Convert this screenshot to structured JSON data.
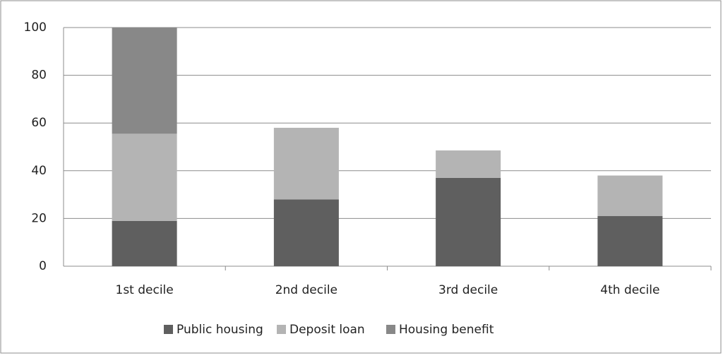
{
  "chart_data": {
    "type": "stacked_bar",
    "categories": [
      "1st decile",
      "2nd decile",
      "3rd decile",
      "4th decile"
    ],
    "series": [
      {
        "name": "Public housing",
        "color": "#5f5f5f",
        "values": [
          19,
          28,
          37,
          21
        ]
      },
      {
        "name": "Deposit loan",
        "color": "#b4b4b4",
        "values": [
          36.5,
          30,
          11.5,
          17
        ]
      },
      {
        "name": "Housing benefit",
        "color": "#888888",
        "values": [
          44.5,
          0,
          0,
          0
        ]
      }
    ],
    "ylim": [
      0,
      100
    ],
    "yticks": [
      0,
      20,
      40,
      60,
      80,
      100
    ],
    "grid": true,
    "legend": "bottom"
  }
}
